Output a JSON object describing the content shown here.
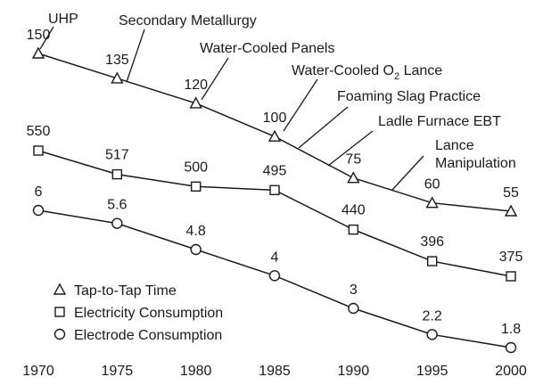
{
  "chart_data": {
    "type": "line",
    "x": [
      1970,
      1975,
      1980,
      1985,
      1990,
      1995,
      2000
    ],
    "xticks": [
      "1970",
      "1975",
      "1980",
      "1985",
      "1990",
      "1995",
      "2000"
    ],
    "series": [
      {
        "name": "Tap-to-Tap Time",
        "marker": "triangle",
        "values": [
          150,
          135,
          120,
          100,
          75,
          60,
          55
        ],
        "labels": [
          "150",
          "135",
          "120",
          "100",
          "75",
          "60",
          "55"
        ]
      },
      {
        "name": "Electricity Consumption",
        "marker": "square",
        "values": [
          550,
          517,
          500,
          495,
          440,
          396,
          375
        ],
        "labels": [
          "550",
          "517",
          "500",
          "495",
          "440",
          "396",
          "375"
        ]
      },
      {
        "name": "Electrode Consumption",
        "marker": "circle",
        "values": [
          6,
          5.6,
          4.8,
          4,
          3,
          2.2,
          1.8
        ],
        "labels": [
          "6",
          "5.6",
          "4.8",
          "4",
          "3",
          "2.2",
          "1.8"
        ]
      }
    ],
    "annotations": [
      {
        "text": "UHP",
        "x": 1970
      },
      {
        "text": "Secondary Metallurgy",
        "x": 1975.5
      },
      {
        "text": "Water-Cooled Panels",
        "x": 1980
      },
      {
        "text": "Water-Cooled O",
        "sub": "2",
        "after": " Lance",
        "x": 1985
      },
      {
        "text": "Foaming Slag Practice",
        "x": 1986.5
      },
      {
        "text": "Ladle Furnace EBT",
        "x": 1988.5
      },
      {
        "text": "Lance",
        "line2": "Manipulation",
        "x": 1992.5
      }
    ],
    "legend_position": "bottom-left",
    "grid": false,
    "colors": {
      "line": "#1a1a1a",
      "marker_fill": "#ffffff"
    }
  }
}
